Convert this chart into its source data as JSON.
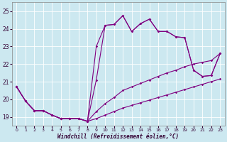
{
  "xlabel": "Windchill (Refroidissement éolien,°C)",
  "bg_color": "#cce8f0",
  "line_color": "#800080",
  "ylim": [
    18.5,
    25.5
  ],
  "xlim": [
    -0.5,
    23.5
  ],
  "yticks": [
    19,
    20,
    21,
    22,
    23,
    24,
    25
  ],
  "xticks": [
    0,
    1,
    2,
    3,
    4,
    5,
    6,
    7,
    8,
    9,
    10,
    11,
    12,
    13,
    14,
    15,
    16,
    17,
    18,
    19,
    20,
    21,
    22,
    23
  ],
  "hours": [
    0,
    1,
    2,
    3,
    4,
    5,
    6,
    7,
    8,
    9,
    10,
    11,
    12,
    13,
    14,
    15,
    16,
    17,
    18,
    19,
    20,
    21,
    22,
    23
  ],
  "line1_y": [
    20.7,
    19.9,
    19.35,
    19.35,
    19.1,
    18.9,
    18.9,
    18.9,
    18.75,
    18.9,
    19.1,
    19.3,
    19.5,
    19.65,
    19.8,
    19.95,
    20.1,
    20.25,
    20.4,
    20.55,
    20.7,
    20.85,
    21.0,
    21.15
  ],
  "line2_y": [
    20.7,
    19.9,
    19.35,
    19.35,
    19.1,
    18.9,
    18.9,
    18.9,
    18.75,
    19.3,
    19.75,
    20.1,
    20.5,
    20.7,
    20.9,
    21.1,
    21.3,
    21.5,
    21.65,
    21.85,
    22.0,
    22.1,
    22.2,
    22.6
  ],
  "line3_y": [
    20.7,
    19.9,
    19.35,
    19.35,
    19.1,
    18.9,
    18.9,
    18.9,
    18.75,
    21.1,
    24.2,
    24.25,
    24.75,
    23.85,
    24.3,
    24.55,
    23.85,
    23.85,
    23.55,
    23.5,
    21.65,
    21.3,
    21.35,
    22.6
  ],
  "line4_y": [
    20.7,
    19.9,
    19.35,
    19.35,
    19.1,
    18.9,
    18.9,
    18.9,
    18.75,
    23.0,
    24.2,
    24.25,
    24.75,
    23.85,
    24.3,
    24.55,
    23.85,
    23.85,
    23.55,
    23.5,
    21.65,
    21.3,
    21.35,
    22.6
  ]
}
